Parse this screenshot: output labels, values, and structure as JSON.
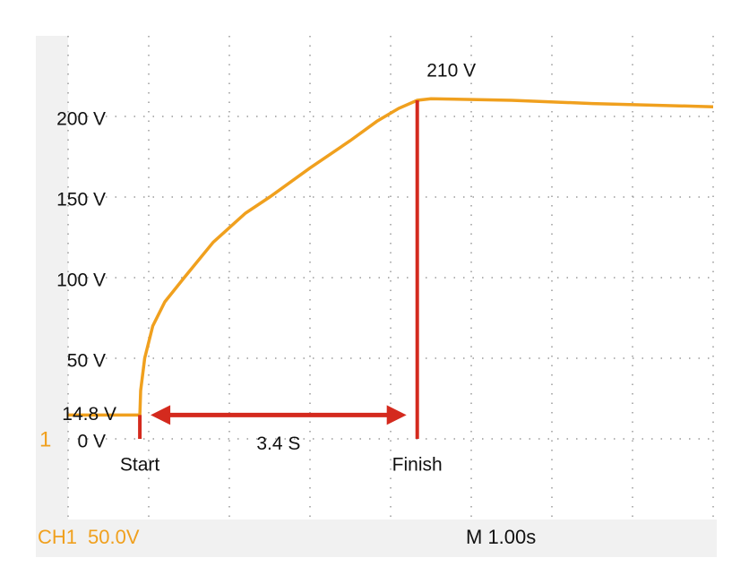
{
  "chart_data": {
    "type": "line",
    "x": [
      0,
      0.89,
      0.9,
      0.95,
      1.05,
      1.2,
      1.44,
      1.8,
      2.2,
      2.5,
      3.0,
      3.5,
      3.83,
      4.1,
      4.33,
      4.5,
      5.5,
      6.5,
      8.0
    ],
    "series": [
      {
        "name": "CH1",
        "color": "#f0a01e",
        "values": [
          14.8,
          14.8,
          30,
          50,
          70,
          85,
          100,
          122,
          140,
          150,
          168,
          185,
          197,
          205,
          210,
          211,
          210,
          208,
          206
        ]
      }
    ],
    "xlim": [
      0,
      8
    ],
    "ylim": [
      -50,
      250
    ],
    "yticks": [
      {
        "value": 0,
        "label": "0 V"
      },
      {
        "value": 50,
        "label": "50 V"
      },
      {
        "value": 100,
        "label": "100 V"
      },
      {
        "value": 150,
        "label": "150 V"
      },
      {
        "value": 200,
        "label": "200 V"
      }
    ],
    "grid": true,
    "channel_marker": "1",
    "annotations": [
      {
        "label": "14.8 V",
        "y": 14.8
      },
      {
        "label": "210 V",
        "y": 210,
        "x": 4.33
      }
    ],
    "markers": [
      {
        "label": "Start",
        "x": 0.89,
        "y": 14.8
      },
      {
        "label": "Finish",
        "x": 4.33,
        "y": 210
      }
    ],
    "interval_label": "3.4 S",
    "marker_color": "#d42a1e",
    "status": {
      "channel": "CH1",
      "volts_per_div": "50.0V",
      "time_base": "M 1.00s"
    }
  }
}
